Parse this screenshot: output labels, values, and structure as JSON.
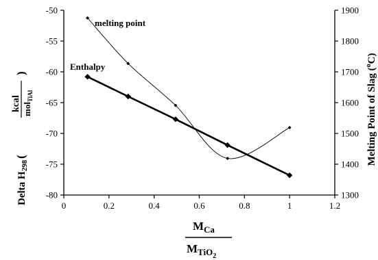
{
  "chart_data": {
    "type": "line",
    "x_axis": {
      "min": 0,
      "max": 1.2,
      "ticks": [
        0,
        0.2,
        0.4,
        0.6,
        0.8,
        1,
        1.2
      ],
      "tick_labels": [
        "0",
        "0.2",
        "0.4",
        "0.6",
        "0.8",
        "1",
        "1.2"
      ],
      "label_numerator": "M",
      "label_numerator_sub": "Ca",
      "label_denominator": "M",
      "label_denominator_sub": "TiO",
      "label_denominator_subsub": "2"
    },
    "y_left": {
      "min": -80,
      "max": -50,
      "ticks": [
        -80,
        -75,
        -70,
        -65,
        -60,
        -55,
        -50
      ],
      "tick_labels": [
        "-80",
        "-75",
        "-70",
        "-65",
        "-60",
        "-55",
        "-50"
      ],
      "label_main": "Delta H",
      "label_sub": "298",
      "label_open": "(",
      "label_frac_num": "kcal",
      "label_frac_den": "mol",
      "label_frac_den_sub": "TiAl",
      "label_close": ")"
    },
    "y_right": {
      "min": 1300,
      "max": 1900,
      "ticks": [
        1300,
        1400,
        1500,
        1600,
        1700,
        1800,
        1900
      ],
      "tick_labels": [
        "1300",
        "1400",
        "1500",
        "1600",
        "1700",
        "1800",
        "1900"
      ],
      "label_main": "Melting Point of Slag (",
      "label_sup": "o",
      "label_end": "C)"
    },
    "series": [
      {
        "name": "Enthalpy",
        "axis": "left",
        "x": [
          0.105,
          0.285,
          0.495,
          0.725,
          1.0
        ],
        "y": [
          -60.8,
          -64.0,
          -67.7,
          -71.9,
          -76.8
        ]
      },
      {
        "name": "melting point",
        "axis": "right",
        "x": [
          0.105,
          0.285,
          0.495,
          0.725,
          1.0
        ],
        "y": [
          1875,
          1727,
          1591,
          1419,
          1519
        ]
      }
    ],
    "grid": false,
    "legend": "none"
  }
}
